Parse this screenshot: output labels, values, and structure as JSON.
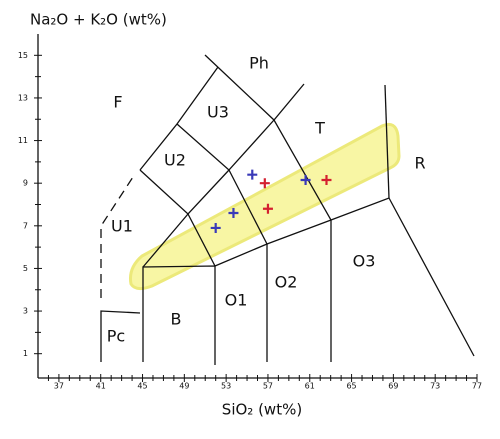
{
  "chart_data": {
    "type": "scatter",
    "ylabel": "Na₂O + K₂O (wt%)",
    "xlabel": "SiO₂ (wt%)",
    "xlim": [
      35,
      77
    ],
    "ylim": [
      0,
      16
    ],
    "xticks": [
      37,
      41,
      45,
      49,
      53,
      57,
      61,
      65,
      69,
      73,
      77
    ],
    "yticks": [
      1,
      3,
      5,
      7,
      9,
      11,
      13,
      15
    ],
    "xminorticks": [
      36,
      38,
      39,
      40,
      42,
      43,
      44,
      46,
      47,
      48,
      50,
      51,
      52,
      54,
      55,
      56,
      58,
      59,
      60,
      62,
      63,
      64,
      66,
      67,
      68,
      70,
      71,
      72,
      74,
      75,
      76
    ],
    "yminorticks": [
      2,
      4,
      6,
      8,
      10,
      12,
      14
    ],
    "series": [
      {
        "color": "#3a3ab8",
        "x": [
          52.0,
          53.7,
          55.5,
          60.6
        ],
        "y": [
          6.9,
          7.6,
          9.4,
          9.15
        ]
      },
      {
        "color": "#d42030",
        "x": [
          56.7,
          57.0,
          62.6
        ],
        "y": [
          9.0,
          7.8,
          9.15
        ]
      }
    ],
    "annotations": [
      "F",
      "Ph",
      "U3",
      "U2",
      "T",
      "R",
      "U1",
      "O3",
      "O2",
      "O1",
      "B",
      "Pc"
    ]
  }
}
